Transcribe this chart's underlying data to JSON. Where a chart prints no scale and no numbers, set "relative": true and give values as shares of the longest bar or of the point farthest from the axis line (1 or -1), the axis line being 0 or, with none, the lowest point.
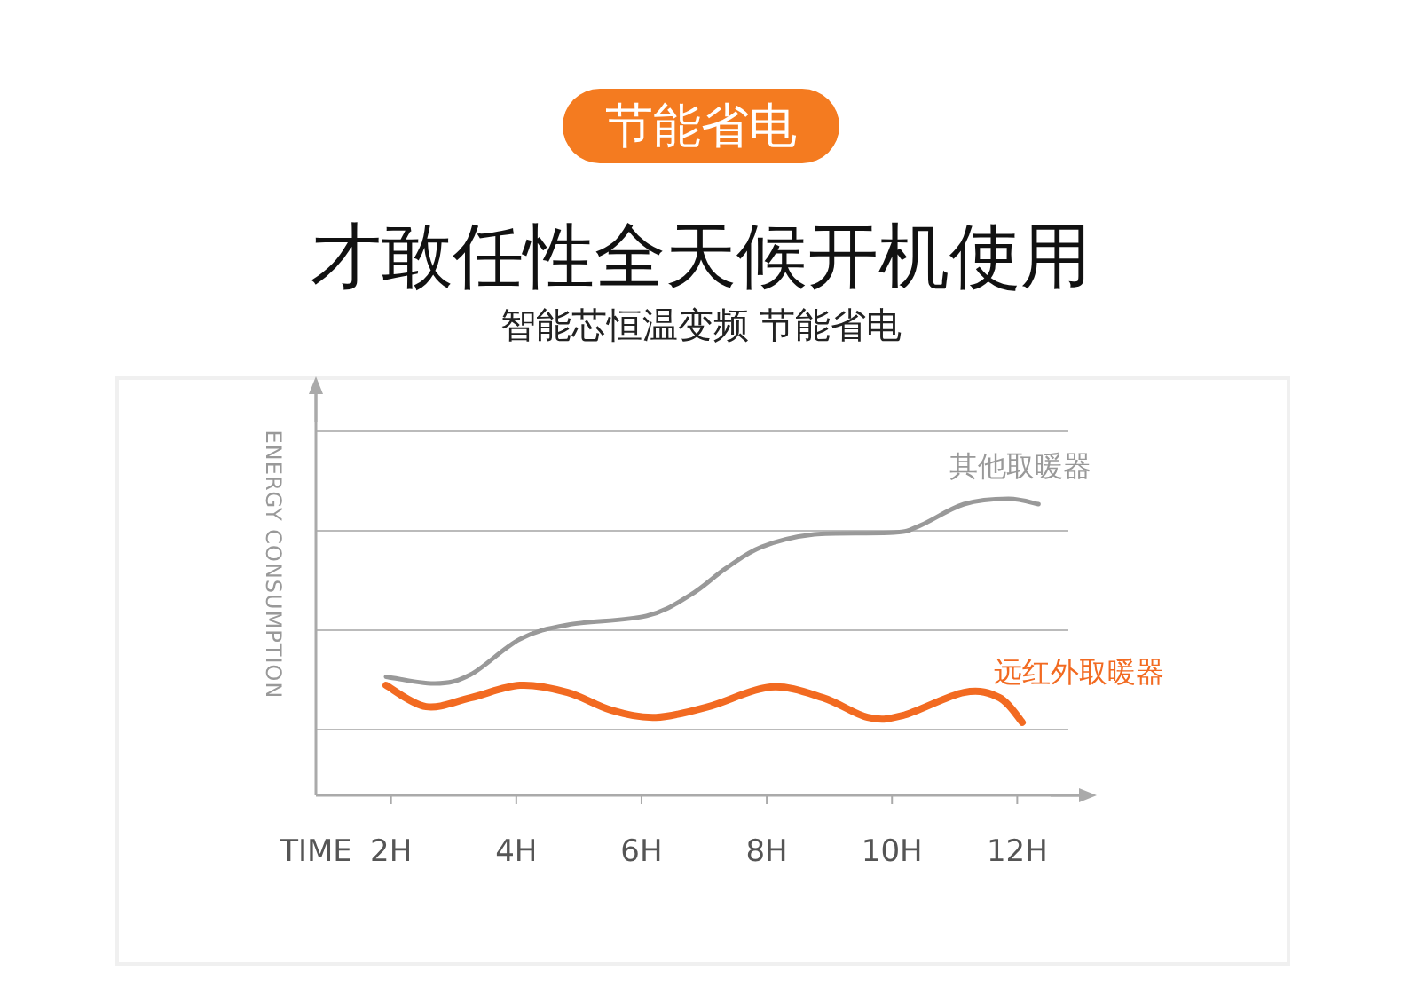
{
  "chart_data": {
    "type": "line",
    "title": "才敢任性全天候开机使用",
    "subtitle": "智能芯恒温变频 节能省电",
    "annotations": [
      "节能省电"
    ],
    "xlabel": "TIME",
    "ylabel": "ENERGY CONSUMPTION",
    "relative": true,
    "grid": "y",
    "xlim": [
      0.8,
      13.1
    ],
    "xticks": [
      {
        "value": 2,
        "label": "2H"
      },
      {
        "value": 4,
        "label": "4H"
      },
      {
        "value": 6,
        "label": "6H"
      },
      {
        "value": 8,
        "label": "8H"
      },
      {
        "value": 10,
        "label": "10H"
      },
      {
        "value": 12,
        "label": "12H"
      }
    ],
    "series": [
      {
        "name": "其他取暖器",
        "color": "#999999",
        "x": [
          1.92,
          2.7,
          3.27,
          4.06,
          4.82,
          6.08,
          6.79,
          7.35,
          7.92,
          8.76,
          10.03,
          10.45,
          11.15,
          11.86,
          12.34
        ],
        "values": [
          0.4,
          0.377,
          0.407,
          0.527,
          0.575,
          0.605,
          0.677,
          0.766,
          0.838,
          0.88,
          0.886,
          0.91,
          0.982,
          1.0,
          0.982
        ]
      },
      {
        "name": "远红外取暖器",
        "color": "#f26a21",
        "x": [
          1.92,
          2.56,
          3.27,
          4.06,
          4.82,
          5.52,
          6.23,
          7.07,
          8.06,
          8.9,
          9.61,
          10.17,
          11.15,
          11.72,
          12.08
        ],
        "values": [
          0.371,
          0.299,
          0.329,
          0.371,
          0.347,
          0.287,
          0.263,
          0.299,
          0.365,
          0.329,
          0.263,
          0.269,
          0.347,
          0.329,
          0.246
        ]
      }
    ]
  }
}
